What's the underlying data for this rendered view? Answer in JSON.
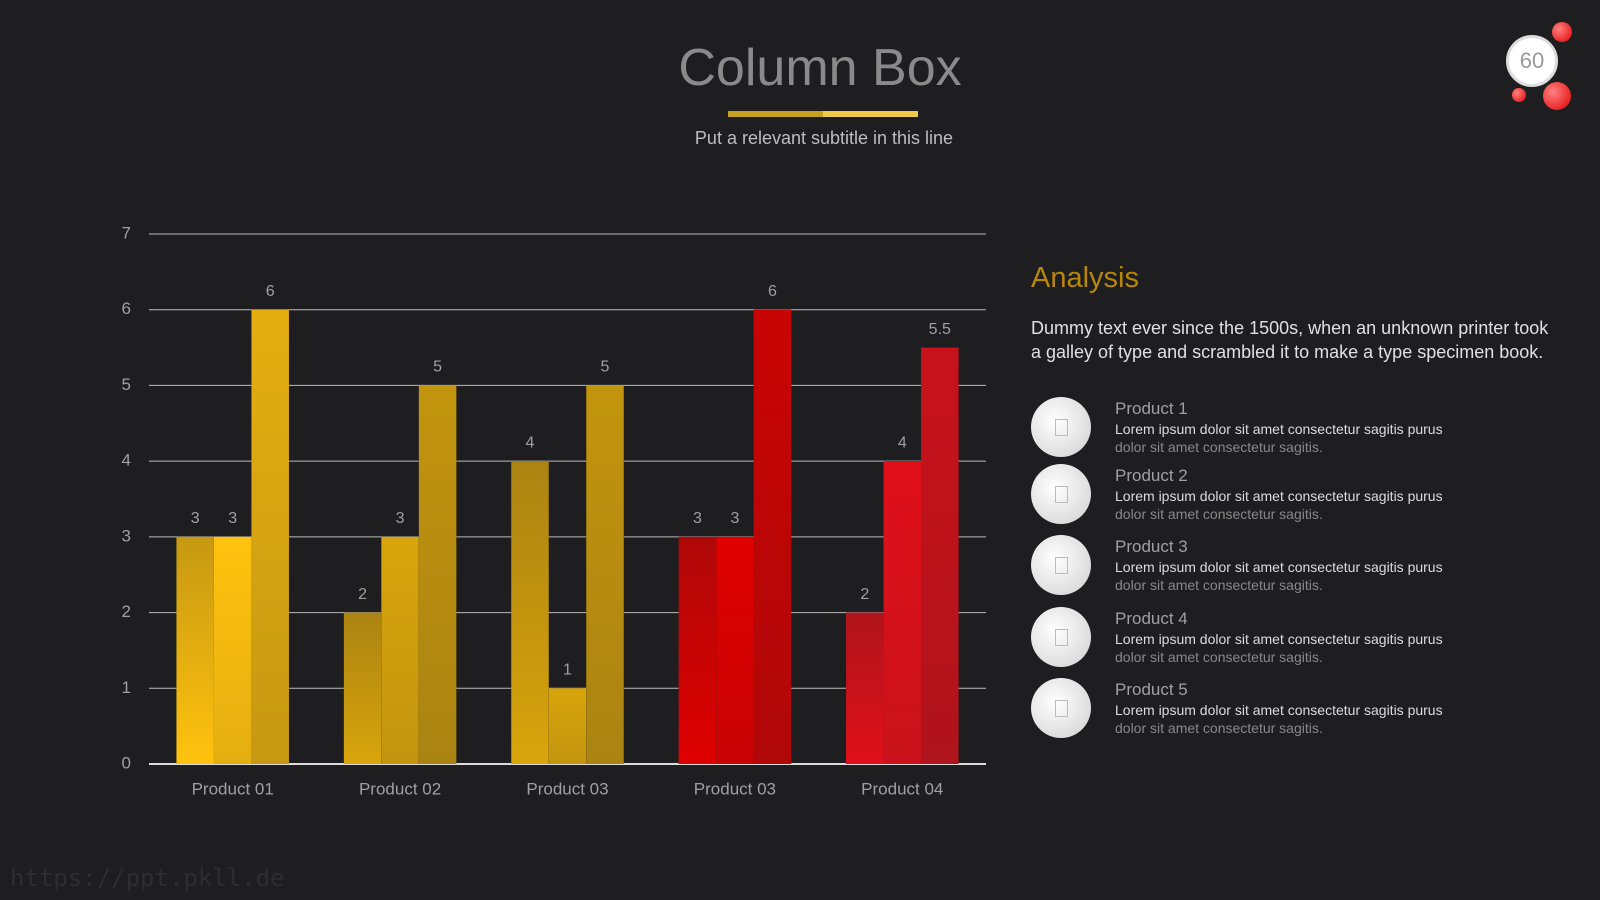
{
  "header": {
    "title": "Column Box",
    "subtitle": "Put a relevant subtitle in this line",
    "page_number": "60"
  },
  "chart_data": {
    "type": "bar",
    "categories": [
      "Product 01",
      "Product 02",
      "Product 03",
      "Product 03",
      "Product 04"
    ],
    "series": [
      {
        "values": [
          3,
          2,
          4,
          3,
          2
        ]
      },
      {
        "values": [
          3,
          3,
          1,
          3,
          4
        ]
      },
      {
        "values": [
          6,
          5,
          5,
          6,
          5.5
        ]
      }
    ],
    "category_colors": [
      "#ffc20e",
      "#d9a50c",
      "#d9a50c",
      "#e00000",
      "#e0101a"
    ],
    "ylim": [
      0,
      7
    ],
    "yticks": [
      0,
      1,
      2,
      3,
      4,
      5,
      6,
      7
    ],
    "grid": true
  },
  "analysis": {
    "title": "Analysis",
    "text": "Dummy text ever since the 1500s, when an unknown printer took a galley of type and scrambled it to make a type specimen book.",
    "items": [
      {
        "name": "Product 1",
        "strong": "Lorem ipsum dolor sit amet consectetur sagitis purus",
        "rest": "dolor sit amet consectetur sagitis."
      },
      {
        "name": "Product 2",
        "strong": "Lorem ipsum dolor sit amet consectetur sagitis purus",
        "rest": "dolor sit amet consectetur sagitis."
      },
      {
        "name": "Product 3",
        "strong": "Lorem ipsum dolor sit amet consectetur sagitis purus",
        "rest": "dolor sit amet consectetur sagitis."
      },
      {
        "name": "Product 4",
        "strong": "Lorem ipsum dolor sit amet consectetur sagitis purus",
        "rest": "dolor sit amet consectetur sagitis."
      },
      {
        "name": "Product 5",
        "strong": "Lorem ipsum dolor sit amet consectetur sagitis purus",
        "rest": "dolor sit amet consectetur sagitis."
      }
    ]
  },
  "watermark": "https://ppt.pkll.de"
}
